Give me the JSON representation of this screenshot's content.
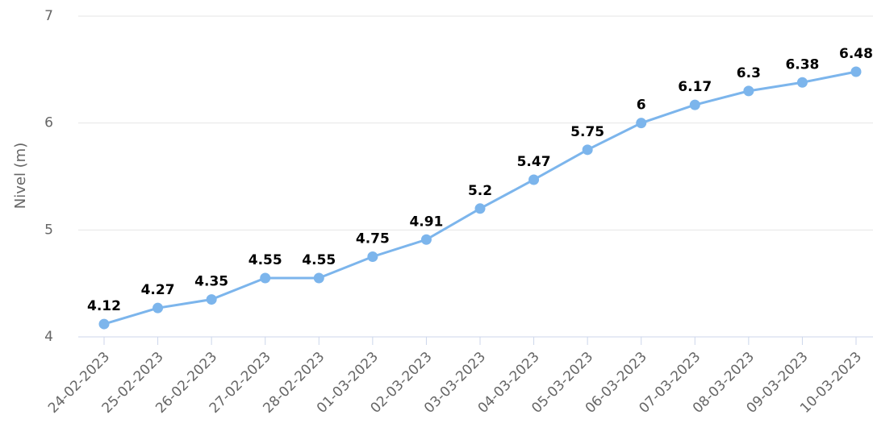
{
  "chart_data": {
    "type": "line",
    "y_label": "Nivel (m)",
    "categories": [
      "24-02-2023",
      "25-02-2023",
      "26-02-2023",
      "27-02-2023",
      "28-02-2023",
      "01-03-2023",
      "02-03-2023",
      "03-03-2023",
      "04-03-2023",
      "05-03-2023",
      "06-03-2023",
      "07-03-2023",
      "08-03-2023",
      "09-03-2023",
      "10-03-2023"
    ],
    "series": [
      {
        "color": "#7cb5ec",
        "values": [
          4.12,
          4.27,
          4.35,
          4.55,
          4.55,
          4.75,
          4.91,
          5.2,
          5.47,
          5.75,
          6,
          6.17,
          6.3,
          6.38,
          6.48
        ]
      }
    ],
    "ylim": [
      4,
      7
    ],
    "yticks": [
      4,
      5,
      6,
      7
    ],
    "grid": true,
    "data_labels": true
  }
}
